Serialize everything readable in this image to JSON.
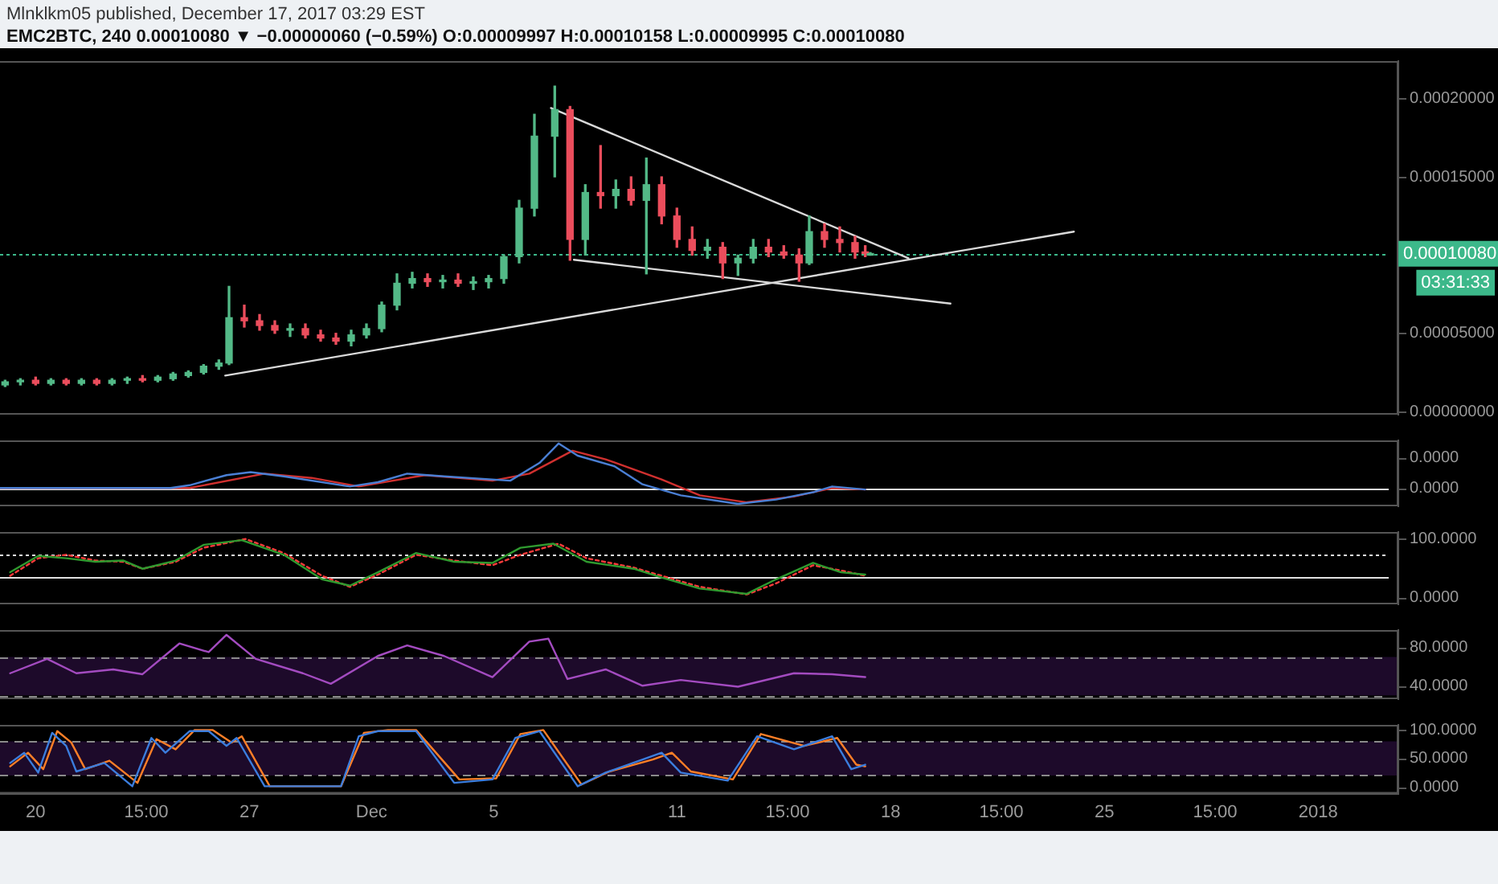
{
  "chart_data": [
    {
      "type": "candlestick",
      "title": "Mlnklkm05 published, December 17, 2017 03:29 EST",
      "subtitle": "EMC2BTC, 240  0.00010080 ▼ −0.00000060 (−0.59%) O:0.00009997 H:0.00010158 L:0.00009995 C:0.00010080",
      "x": [
        "2017-11-19T00:00",
        "2017-11-19T12:00",
        "2017-11-20T00:00",
        "2017-11-20T12:00",
        "2017-11-21T00:00",
        "2017-11-21T12:00",
        "2017-11-22T00:00",
        "2017-11-22T12:00",
        "2017-11-23T00:00",
        "2017-11-23T12:00",
        "2017-11-24T00:00",
        "2017-11-24T12:00",
        "2017-11-25T00:00",
        "2017-11-25T12:00",
        "2017-11-26T00:00",
        "2017-11-26T08:00",
        "2017-11-26T20:00",
        "2017-11-27T08:00",
        "2017-11-27T20:00",
        "2017-11-28T08:00",
        "2017-11-28T20:00",
        "2017-11-29T08:00",
        "2017-11-29T20:00",
        "2017-11-30T08:00",
        "2017-11-30T20:00",
        "2017-12-01T08:00",
        "2017-12-01T20:00",
        "2017-12-02T08:00",
        "2017-12-02T20:00",
        "2017-12-03T08:00",
        "2017-12-03T20:00",
        "2017-12-04T08:00",
        "2017-12-04T20:00",
        "2017-12-05T08:00",
        "2017-12-05T20:00",
        "2017-12-06T08:00",
        "2017-12-07T00:00",
        "2017-12-07T12:00",
        "2017-12-08T00:00",
        "2017-12-08T12:00",
        "2017-12-09T00:00",
        "2017-12-09T12:00",
        "2017-12-10T00:00",
        "2017-12-10T12:00",
        "2017-12-11T00:00",
        "2017-12-11T12:00",
        "2017-12-12T00:00",
        "2017-12-12T12:00",
        "2017-12-13T00:00",
        "2017-12-13T12:00",
        "2017-12-14T00:00",
        "2017-12-14T12:00",
        "2017-12-15T00:00",
        "2017-12-15T08:00",
        "2017-12-15T20:00",
        "2017-12-16T08:00",
        "2017-12-16T20:00",
        "2017-12-17T04:00",
        "2017-12-17T08:00"
      ],
      "ohlc": [
        [
          1.7e-05,
          2e-05,
          1.6e-05,
          1.9e-05
        ],
        [
          1.9e-05,
          2.1e-05,
          1.7e-05,
          2e-05
        ],
        [
          2e-05,
          2.2e-05,
          1.7e-05,
          1.8e-05
        ],
        [
          1.8e-05,
          2.1e-05,
          1.7e-05,
          2e-05
        ],
        [
          2e-05,
          2.1e-05,
          1.7e-05,
          1.8e-05
        ],
        [
          1.8e-05,
          2.1e-05,
          1.7e-05,
          2e-05
        ],
        [
          2e-05,
          2.1e-05,
          1.7e-05,
          1.8e-05
        ],
        [
          1.8e-05,
          2.1e-05,
          1.7e-05,
          2e-05
        ],
        [
          2e-05,
          2.2e-05,
          1.8e-05,
          2.1e-05
        ],
        [
          2.1e-05,
          2.3e-05,
          1.9e-05,
          2e-05
        ],
        [
          2e-05,
          2.3e-05,
          1.9e-05,
          2.2e-05
        ],
        [
          2.1e-05,
          2.5e-05,
          2e-05,
          2.4e-05
        ],
        [
          2.3e-05,
          2.6e-05,
          2.2e-05,
          2.5e-05
        ],
        [
          2.5e-05,
          3e-05,
          2.4e-05,
          2.9e-05
        ],
        [
          2.9e-05,
          3.3e-05,
          2.7e-05,
          3.1e-05
        ],
        [
          3.1e-05,
          8e-05,
          3e-05,
          6e-05
        ],
        [
          6e-05,
          6.8e-05,
          5.4e-05,
          5.8e-05
        ],
        [
          5.8e-05,
          6.2e-05,
          5.2e-05,
          5.5e-05
        ],
        [
          5.5e-05,
          5.8e-05,
          5e-05,
          5.2e-05
        ],
        [
          5.2e-05,
          5.6e-05,
          4.8e-05,
          5.3e-05
        ],
        [
          5.3e-05,
          5.6e-05,
          4.7e-05,
          4.9e-05
        ],
        [
          4.9e-05,
          5.2e-05,
          4.5e-05,
          4.7e-05
        ],
        [
          4.7e-05,
          5e-05,
          4.3e-05,
          4.5e-05
        ],
        [
          4.5e-05,
          5.2e-05,
          4.2e-05,
          4.9e-05
        ],
        [
          4.9e-05,
          5.6e-05,
          4.7e-05,
          5.3e-05
        ],
        [
          5.3e-05,
          7e-05,
          5.1e-05,
          6.8e-05
        ],
        [
          6.8e-05,
          8.8e-05,
          6.5e-05,
          8.2e-05
        ],
        [
          8.2e-05,
          8.9e-05,
          7.9e-05,
          8.5e-05
        ],
        [
          8.5e-05,
          8.8e-05,
          8e-05,
          8.3e-05
        ],
        [
          8.3e-05,
          8.7e-05,
          7.9e-05,
          8.4e-05
        ],
        [
          8.4e-05,
          8.8e-05,
          8e-05,
          8.2e-05
        ],
        [
          8.2e-05,
          8.6e-05,
          7.8e-05,
          8.3e-05
        ],
        [
          8.3e-05,
          8.7e-05,
          7.9e-05,
          8.5e-05
        ],
        [
          8.5e-05,
          0.0001,
          8.2e-05,
          9.9e-05
        ],
        [
          9.9e-05,
          0.000135,
          9.5e-05,
          0.00013
        ],
        [
          0.00013,
          0.00019,
          0.000125,
          0.000176
        ],
        [
          0.000176,
          0.000208,
          0.00015,
          0.000193
        ],
        [
          0.000193,
          0.000195,
          9.67e-05,
          0.00011
        ],
        [
          0.00011,
          0.000145,
          0.0001,
          0.00014
        ],
        [
          0.00014,
          0.00017,
          0.00013,
          0.000138
        ],
        [
          0.000138,
          0.000148,
          0.00013,
          0.000142
        ],
        [
          0.000142,
          0.00015,
          0.000132,
          0.000135
        ],
        [
          0.000135,
          0.000162,
          8.8e-05,
          0.000145
        ],
        [
          0.000145,
          0.00015,
          0.00012,
          0.000125
        ],
        [
          0.000125,
          0.00013,
          0.000105,
          0.00011
        ],
        [
          0.00011,
          0.000118,
          0.0001,
          0.000103
        ],
        [
          0.000103,
          0.00011,
          9.8e-05,
          0.000105
        ],
        [
          0.000105,
          0.000108,
          8.5e-05,
          9.5e-05
        ],
        [
          9.5e-05,
          0.0001,
          8.7e-05,
          9.8e-05
        ],
        [
          9.8e-05,
          0.00011,
          9.5e-05,
          0.000105
        ],
        [
          0.000105,
          0.00011,
          9.9e-05,
          0.000102
        ],
        [
          0.000102,
          0.000106,
          9.8e-05,
          0.0001
        ],
        [
          0.0001,
          0.000104,
          8.33e-05,
          9.5e-05
        ],
        [
          9.5e-05,
          0.000125,
          9.4e-05,
          0.000115
        ],
        [
          0.000115,
          0.00012,
          0.000105,
          0.00011
        ],
        [
          0.00011,
          0.000118,
          0.000102,
          0.000108
        ],
        [
          0.000108,
          0.000112,
          9.8e-05,
          0.000102
        ],
        [
          0.000102,
          0.000106,
          9.9e-05,
          0.000101
        ],
        [
          9.997e-05,
          0.00010158,
          9.995e-05,
          0.0001008
        ]
      ],
      "series": [
        {
          "type": "line",
          "color": "#d9d9d9",
          "x": [
            "2017-12-06T21:00",
            "2017-12-18T14:00"
          ],
          "values": [
            0.000194,
            9.8e-05
          ]
        },
        {
          "type": "line",
          "color": "#d9d9d9",
          "x": [
            "2017-12-07T15:00",
            "2017-12-19T23:00"
          ],
          "values": [
            9.7e-05,
            6.9e-05
          ]
        },
        {
          "type": "line",
          "color": "#d9d9d9",
          "x": [
            "2017-11-26T05:00",
            "2017-12-24T00:00"
          ],
          "values": [
            2.3e-05,
            0.000115
          ]
        }
      ],
      "xlim": [
        "2017-11-18T20:00",
        "2018-01-03T15:00"
      ],
      "ylim": [
        -2e-06,
        0.000224
      ],
      "yticks": [
        {
          "value": 0,
          "label": "0.00000000"
        },
        {
          "value": 5e-05,
          "label": "0.00005000"
        },
        {
          "value": 0.00015,
          "label": "0.00015000"
        },
        {
          "value": 0.0002,
          "label": "0.00020000"
        }
      ],
      "ref_lines": [
        {
          "axis": "y",
          "value": 0.0001008,
          "label": "0.00010080",
          "color": "#3cb88a",
          "line_style": "dotted"
        }
      ],
      "annotations": [
        "03:31:33"
      ],
      "tick_labels": "y",
      "grid": false,
      "legend": false
    },
    {
      "type": "line",
      "series": [
        {
          "color": "#4a7fd4",
          "x": [
            "2017-11-18T20:00",
            "2017-11-24T10:00",
            "2017-11-25T01:00",
            "2017-11-26T06:00",
            "2017-11-27T01:00",
            "2017-11-28T03:00",
            "2017-11-30T07:00",
            "2017-12-01T05:00",
            "2017-12-02T04:00",
            "2017-12-03T09:00",
            "2017-12-05T13:00",
            "2017-12-06T12:00",
            "2017-12-07T03:00",
            "2017-12-07T18:00",
            "2017-12-08T23:00",
            "2017-12-09T21:00",
            "2017-12-11T03:00",
            "2017-12-13T00:00",
            "2017-12-14T06:00",
            "2017-12-15T11:00",
            "2017-12-16T02:00",
            "2017-12-17T04:00"
          ],
          "values": [
            0,
            0,
            9e-07,
            4.2e-06,
            5.2e-06,
            3.8e-06,
            5e-07,
            1.9e-06,
            4.7e-06,
            3.8e-06,
            2.4e-06,
            8.2e-06,
            1.46e-05,
            1.06e-05,
            7.1e-06,
            1.2e-06,
            -2.4e-06,
            -5.2e-06,
            -3.8e-06,
            -1.4e-06,
            5e-07,
            -5e-07
          ]
        },
        {
          "color": "#d0302f",
          "x": [
            "2017-11-18T20:00",
            "2017-11-25T01:00",
            "2017-11-27T12:00",
            "2017-11-29T01:00",
            "2017-11-30T14:00",
            "2017-12-02T18:00",
            "2017-12-04T23:00",
            "2017-12-06T04:00",
            "2017-12-07T14:00",
            "2017-12-08T16:00",
            "2017-12-10T12:00",
            "2017-12-11T18:00",
            "2017-12-13T07:00",
            "2017-12-14T20:00",
            "2017-12-16T02:00",
            "2017-12-17T04:00"
          ],
          "values": [
            0,
            0,
            4.7e-06,
            3.3e-06,
            5e-07,
            4.2e-06,
            2.4e-06,
            4.7e-06,
            1.22e-05,
            9.4e-06,
            2.8e-06,
            -2.4e-06,
            -4.7e-06,
            -2.8e-06,
            0,
            -5e-07
          ]
        }
      ],
      "xlim": [
        "2017-11-18T20:00",
        "2018-01-03T15:00"
      ],
      "ylim": [
        -6e-06,
        1.56e-05
      ],
      "yticks": [
        {
          "value": 0,
          "label": "0.0000"
        },
        {
          "value": 1e-05,
          "label": "0.0000"
        }
      ],
      "ref_lines": [
        {
          "axis": "y",
          "value": 0,
          "color": "#e0e0e0",
          "line_style": "solid"
        }
      ],
      "tick_labels": "y",
      "grid": false,
      "legend": false
    },
    {
      "type": "line",
      "series": [
        {
          "color": "#2f9a2f",
          "x": [
            "2017-11-19T04:00",
            "2017-11-20T02:00",
            "2017-11-21T00:00",
            "2017-11-21T23:00",
            "2017-11-22T21:00",
            "2017-11-23T12:00",
            "2017-11-24T14:00",
            "2017-11-25T12:00",
            "2017-11-26T18:00",
            "2017-11-28T03:00",
            "2017-11-29T09:00",
            "2017-11-30T07:00",
            "2017-12-01T05:00",
            "2017-12-02T11:00",
            "2017-12-03T17:00",
            "2017-12-04T23:00",
            "2017-12-05T21:00",
            "2017-12-06T23:00",
            "2017-12-08T01:00",
            "2017-12-09T14:00",
            "2017-12-10T12:00",
            "2017-12-11T18:00",
            "2017-12-13T07:00",
            "2017-12-14T06:00",
            "2017-12-15T11:00",
            "2017-12-16T09:00",
            "2017-12-17T04:00"
          ],
          "values": [
            43,
            71,
            67,
            61,
            63,
            49,
            63,
            90,
            98,
            73,
            31,
            20,
            43,
            76,
            61,
            59,
            85,
            92,
            61,
            49,
            34,
            15,
            6,
            31,
            59,
            43,
            39
          ]
        },
        {
          "color": "#ff3b3b",
          "line_style": "dotted",
          "x": [
            "2017-11-19T04:00",
            "2017-11-20T02:00",
            "2017-11-21T00:00",
            "2017-11-21T23:00",
            "2017-11-22T21:00",
            "2017-11-23T12:00",
            "2017-11-24T14:00",
            "2017-11-25T12:00",
            "2017-11-26T21:00",
            "2017-11-28T03:00",
            "2017-11-29T09:00",
            "2017-11-30T07:00",
            "2017-12-01T05:00",
            "2017-12-02T11:00",
            "2017-12-03T17:00",
            "2017-12-04T23:00",
            "2017-12-05T21:00",
            "2017-12-07T03:00",
            "2017-12-08T01:00",
            "2017-12-09T14:00",
            "2017-12-10T12:00",
            "2017-12-11T18:00",
            "2017-12-13T07:00",
            "2017-12-14T06:00",
            "2017-12-15T11:00",
            "2017-12-16T09:00",
            "2017-12-17T04:00"
          ],
          "values": [
            37,
            67,
            73,
            63,
            61,
            49,
            61,
            85,
            100,
            76,
            37,
            18,
            39,
            73,
            63,
            55,
            73,
            92,
            67,
            51,
            37,
            18,
            5,
            24,
            55,
            46,
            37
          ]
        }
      ],
      "xlim": [
        "2017-11-18T20:00",
        "2018-01-03T15:00"
      ],
      "ylim": [
        -12,
        112
      ],
      "yticks": [
        {
          "value": 0,
          "label": "0.0000"
        },
        {
          "value": 100,
          "label": "100.0000"
        }
      ],
      "ref_lines": [
        {
          "axis": "y",
          "value": 73,
          "color": "#e0e0e0",
          "line_style": "dotted"
        },
        {
          "axis": "y",
          "value": 35,
          "color": "#e0e0e0",
          "line_style": "solid"
        }
      ],
      "tick_labels": "y",
      "grid": false,
      "legend": false
    },
    {
      "type": "line",
      "series": [
        {
          "color": "#a34bc0",
          "x": [
            "2017-11-19T04:00",
            "2017-11-20T09:00",
            "2017-11-21T08:00",
            "2017-11-22T13:00",
            "2017-11-23T12:00",
            "2017-11-24T17:00",
            "2017-11-25T16:00",
            "2017-11-26T06:00",
            "2017-11-27T05:00",
            "2017-11-28T18:00",
            "2017-11-29T16:00",
            "2017-12-01T05:00",
            "2017-12-02T04:00",
            "2017-12-03T09:00",
            "2017-12-04T23:00",
            "2017-12-06T04:00",
            "2017-12-06T19:00",
            "2017-12-07T10:00",
            "2017-12-08T16:00",
            "2017-12-09T21:00",
            "2017-12-11T03:00",
            "2017-12-13T00:00",
            "2017-12-14T20:00",
            "2017-12-16T02:00",
            "2017-12-17T04:00"
          ],
          "values": [
            53,
            68,
            53,
            57,
            52,
            84,
            75,
            93,
            68,
            53,
            42,
            71,
            82,
            71,
            49,
            86,
            89,
            47,
            57,
            40,
            46,
            39,
            53,
            52,
            49
          ]
        }
      ],
      "xlim": [
        "2017-11-18T20:00",
        "2018-01-03T15:00"
      ],
      "ylim": [
        26,
        98
      ],
      "yticks": [
        {
          "value": 80,
          "label": "80.0000"
        },
        {
          "value": 40,
          "label": "40.0000"
        }
      ],
      "bands": [
        {
          "axis": "y",
          "from": 30,
          "to": 70,
          "color": "#1d0a2a"
        }
      ],
      "ref_lines": [
        {
          "axis": "y",
          "value": 70,
          "color": "#8a8a8a",
          "line_style": "dashed"
        },
        {
          "axis": "y",
          "value": 30,
          "color": "#8a8a8a",
          "line_style": "dashed"
        }
      ],
      "tick_labels": "y",
      "grid": false,
      "legend": false
    },
    {
      "type": "line",
      "series": [
        {
          "color": "#3b7ddd",
          "x": [
            "2017-11-19T04:00",
            "2017-11-19T15:00",
            "2017-11-20T02:00",
            "2017-11-20T13:00",
            "2017-11-21T00:00",
            "2017-11-21T08:00",
            "2017-11-22T06:00",
            "2017-11-23T04:00",
            "2017-11-23T19:00",
            "2017-11-24T06:00",
            "2017-11-25T01:00",
            "2017-11-25T16:00",
            "2017-11-26T06:00",
            "2017-11-26T14:00",
            "2017-11-27T12:00",
            "2017-11-30T00:00",
            "2017-11-30T14:00",
            "2017-12-01T05:00",
            "2017-12-02T11:00",
            "2017-12-03T17:00",
            "2017-12-04T23:00",
            "2017-12-05T17:00",
            "2017-12-06T12:00",
            "2017-12-07T18:00",
            "2017-12-08T16:00",
            "2017-12-09T21:00",
            "2017-12-10T12:00",
            "2017-12-11T03:00",
            "2017-12-12T16:00",
            "2017-12-13T15:00",
            "2017-12-14T20:00",
            "2017-12-16T02:00",
            "2017-12-16T17:00",
            "2017-12-17T04:00"
          ],
          "values": [
            42,
            60,
            25,
            95,
            72,
            27,
            42,
            1,
            86,
            60,
            98,
            98,
            72,
            86,
            1,
            1,
            89,
            98,
            98,
            7,
            13,
            86,
            98,
            1,
            25,
            48,
            60,
            25,
            11,
            89,
            66,
            89,
            31,
            39
          ]
        },
        {
          "color": "#ff7f27",
          "x": [
            "2017-11-19T04:00",
            "2017-11-19T18:00",
            "2017-11-20T06:00",
            "2017-11-20T17:00",
            "2017-11-21T04:00",
            "2017-11-21T15:00",
            "2017-11-22T10:00",
            "2017-11-23T08:00",
            "2017-11-23T23:00",
            "2017-11-24T14:00",
            "2017-11-25T05:00",
            "2017-11-25T19:00",
            "2017-11-26T10:00",
            "2017-11-26T18:00",
            "2017-11-27T16:00",
            "2017-11-30T00:00",
            "2017-11-30T18:00",
            "2017-12-01T13:00",
            "2017-12-02T11:00",
            "2017-12-03T21:00",
            "2017-12-05T02:00",
            "2017-12-05T21:00",
            "2017-12-06T15:00",
            "2017-12-07T21:00",
            "2017-12-08T19:00",
            "2017-12-10T05:00",
            "2017-12-10T20:00",
            "2017-12-11T11:00",
            "2017-12-12T20:00",
            "2017-12-13T18:00",
            "2017-12-15T04:00",
            "2017-12-16T06:00",
            "2017-12-16T21:00",
            "2017-12-17T04:00"
          ],
          "values": [
            36,
            60,
            31,
            98,
            78,
            31,
            46,
            7,
            84,
            66,
            100,
            100,
            78,
            89,
            1,
            1,
            95,
            100,
            100,
            13,
            15,
            93,
            100,
            4,
            27,
            48,
            60,
            27,
            13,
            93,
            72,
            86,
            39,
            36
          ]
        }
      ],
      "xlim": [
        "2017-11-18T20:00",
        "2018-01-03T15:00"
      ],
      "ylim": [
        -12,
        109
      ],
      "xticks": [
        {
          "value": "2017-11-20T00:00",
          "label": "20"
        },
        {
          "value": "2017-11-23T15:00",
          "label": "15:00"
        },
        {
          "value": "2017-11-27T00:00",
          "label": "27"
        },
        {
          "value": "2017-12-01T00:00",
          "label": "Dec"
        },
        {
          "value": "2017-12-05T00:00",
          "label": "5"
        },
        {
          "value": "2017-12-11T00:00",
          "label": "11"
        },
        {
          "value": "2017-12-14T15:00",
          "label": "15:00"
        },
        {
          "value": "2017-12-18T00:00",
          "label": "18"
        },
        {
          "value": "2017-12-21T15:00",
          "label": "15:00"
        },
        {
          "value": "2017-12-25T00:00",
          "label": "25"
        },
        {
          "value": "2017-12-28T15:00",
          "label": "15:00"
        },
        {
          "value": "2018-01-01T00:00",
          "label": "2018"
        }
      ],
      "yticks": [
        {
          "value": 0,
          "label": "0.0000"
        },
        {
          "value": 50,
          "label": "50.0000"
        },
        {
          "value": 100,
          "label": "100.0000"
        }
      ],
      "bands": [
        {
          "axis": "y",
          "from": 20,
          "to": 80,
          "color": "#1d0a2a"
        }
      ],
      "ref_lines": [
        {
          "axis": "y",
          "value": 80,
          "color": "#8a8a8a",
          "line_style": "dashed"
        },
        {
          "axis": "y",
          "value": 20,
          "color": "#8a8a8a",
          "line_style": "dashed"
        }
      ],
      "grid": false,
      "legend": false
    }
  ]
}
